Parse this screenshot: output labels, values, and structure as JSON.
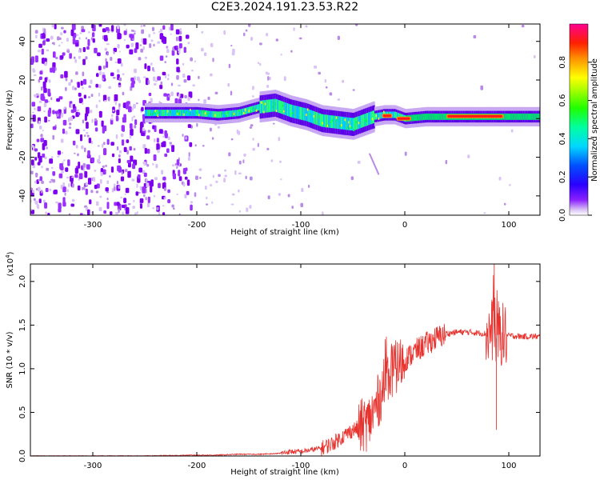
{
  "title": "C2E3.2024.191.23.53.R22",
  "chart_data": [
    {
      "type": "heatmap",
      "title": "C2E3.2024.191.23.53.R22",
      "xlabel": "Height of straight line (km)",
      "ylabel": "Frequency (Hz)",
      "xlim": [
        -360,
        130
      ],
      "ylim": [
        -50,
        49
      ],
      "xticks": [
        -300,
        -200,
        -100,
        0,
        100
      ],
      "xtick_labels": [
        "-300",
        "-200",
        "-100",
        "0",
        "100"
      ],
      "yticks": [
        -40,
        -20,
        0,
        20,
        40
      ],
      "ytick_labels": [
        "-40",
        "-20",
        "0",
        "20",
        "40"
      ],
      "grid": false,
      "colorbar": {
        "label": "Normalized spectral amplitude",
        "range": [
          0,
          1
        ],
        "ticks": [
          0.0,
          0.2,
          0.4,
          0.6,
          0.8
        ],
        "tick_labels": [
          "0.0",
          "0.2",
          "0.4",
          "0.6",
          "0.8"
        ],
        "colors": [
          "#ffffff",
          "#c9a6f0",
          "#7f00ff",
          "#0000ff",
          "#00c8ff",
          "#00ff80",
          "#50ff00",
          "#ffff00",
          "#ff8000",
          "#ff0000",
          "#ff00aa"
        ]
      },
      "ridge": {
        "x": [
          -250,
          -220,
          -200,
          -180,
          -160,
          -140,
          -125,
          -110,
          -95,
          -80,
          -65,
          -50,
          -40,
          -30,
          -20,
          -10,
          0,
          20,
          50,
          90,
          130
        ],
        "frequency": [
          3,
          3,
          3,
          2,
          3,
          6,
          7,
          4,
          2,
          -1,
          -2,
          -3,
          -1,
          1,
          2,
          2,
          0,
          1,
          1,
          1,
          1
        ]
      }
    },
    {
      "type": "line",
      "xlabel": "Height of straight line (km)",
      "ylabel": "SNR (10 * v/v)",
      "y_multiplier": "(x10^4)",
      "xlim": [
        -360,
        130
      ],
      "ylim": [
        0,
        2.2
      ],
      "xticks": [
        -300,
        -200,
        -100,
        0,
        100
      ],
      "xtick_labels": [
        "-300",
        "-200",
        "-100",
        "0",
        "100"
      ],
      "yticks": [
        0.0,
        0.5,
        1.0,
        1.5,
        2.0
      ],
      "ytick_labels": [
        "0.0",
        "0.5",
        "1.0",
        "1.5",
        "2.0"
      ],
      "grid": false,
      "series": [
        {
          "color": "#e8322e",
          "x": [
            -360,
            -300,
            -250,
            -200,
            -180,
            -160,
            -140,
            -120,
            -110,
            -100,
            -90,
            -80,
            -70,
            -60,
            -50,
            -45,
            -40,
            -35,
            -30,
            -25,
            -20,
            -15,
            -10,
            -5,
            0,
            5,
            10,
            20,
            30,
            40,
            50,
            60,
            70,
            80,
            85,
            90,
            95,
            100,
            110,
            120,
            130
          ],
          "values": [
            0.0,
            0.0,
            0.0,
            0.01,
            0.01,
            0.02,
            0.02,
            0.03,
            0.05,
            0.05,
            0.07,
            0.09,
            0.14,
            0.22,
            0.3,
            0.32,
            0.35,
            0.38,
            0.5,
            0.65,
            0.8,
            0.95,
            1.0,
            1.05,
            1.1,
            1.15,
            1.2,
            1.28,
            1.35,
            1.4,
            1.42,
            1.42,
            1.41,
            1.4,
            1.45,
            1.42,
            1.38,
            1.38,
            1.37,
            1.37,
            1.37
          ]
        }
      ]
    }
  ]
}
